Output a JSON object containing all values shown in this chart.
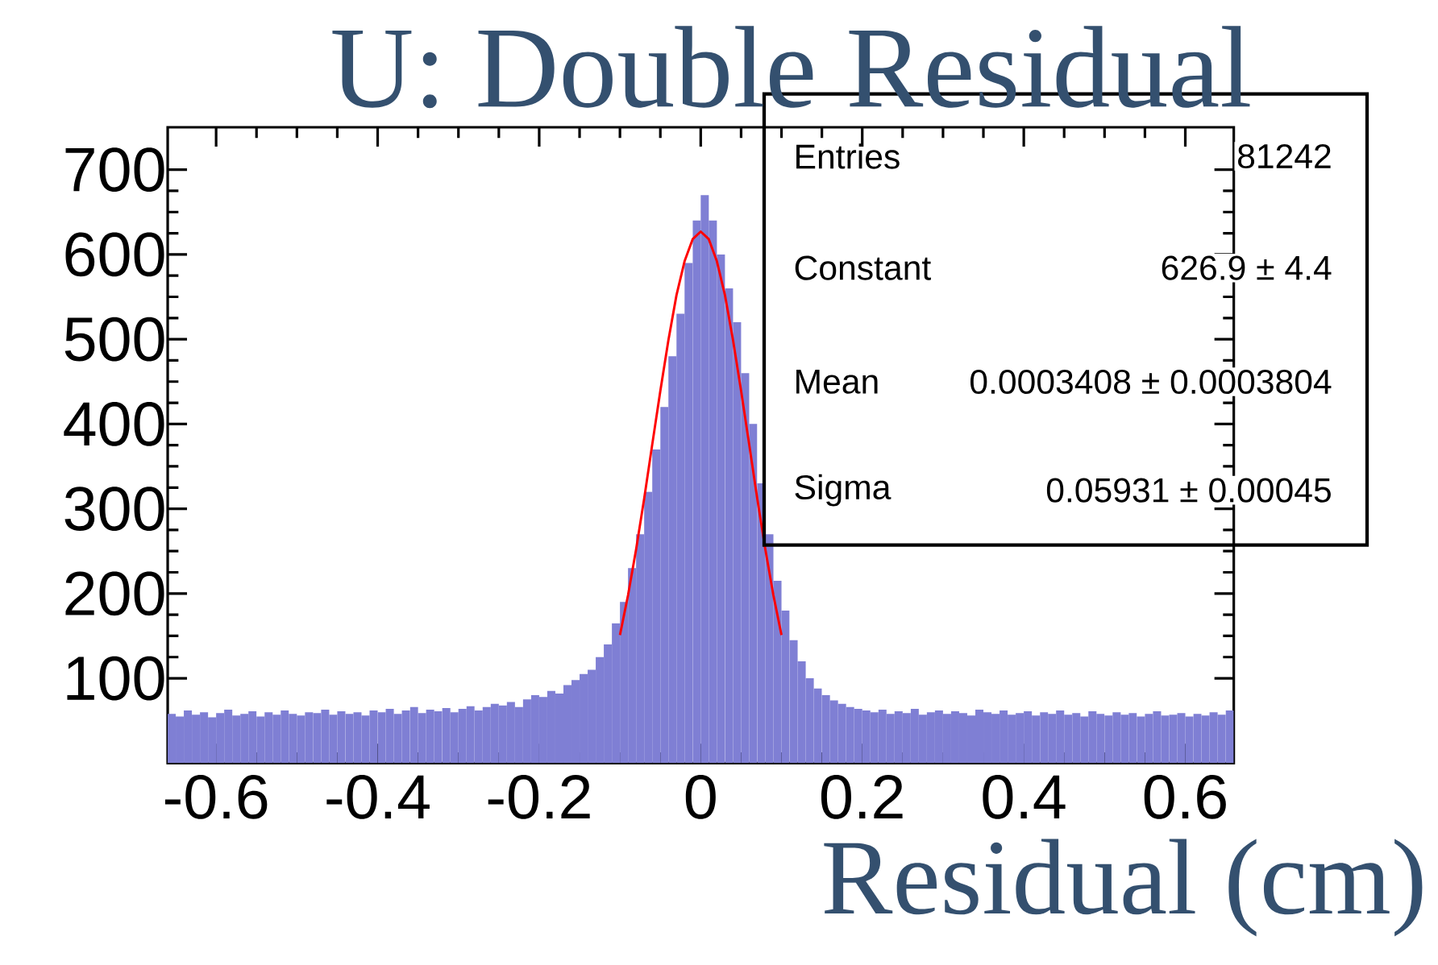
{
  "chart_data": {
    "type": "histogram",
    "title": "U: Double Residual",
    "xlabel": "Residual (cm)",
    "xlim": [
      -0.66,
      0.66
    ],
    "ylim": [
      0,
      750
    ],
    "xticks": [
      -0.6,
      -0.4,
      -0.2,
      0,
      0.2,
      0.4,
      0.6
    ],
    "yticks": [
      100,
      200,
      300,
      400,
      500,
      600,
      700
    ],
    "grid": false,
    "series": [
      {
        "color": "#7f7fd4",
        "bins": [
          -0.66,
          -0.65,
          -0.64,
          -0.63,
          -0.62,
          -0.61,
          -0.6,
          -0.59,
          -0.58,
          -0.57,
          -0.56,
          -0.55,
          -0.54,
          -0.53,
          -0.52,
          -0.51,
          -0.5,
          -0.49,
          -0.48,
          -0.47,
          -0.46,
          -0.45,
          -0.44,
          -0.43,
          -0.42,
          -0.41,
          -0.4,
          -0.39,
          -0.38,
          -0.37,
          -0.36,
          -0.35,
          -0.34,
          -0.33,
          -0.32,
          -0.31,
          -0.3,
          -0.29,
          -0.28,
          -0.27,
          -0.26,
          -0.25,
          -0.24,
          -0.23,
          -0.22,
          -0.21,
          -0.2,
          -0.19,
          -0.18,
          -0.17,
          -0.16,
          -0.15,
          -0.14,
          -0.13,
          -0.12,
          -0.11,
          -0.1,
          -0.09,
          -0.08,
          -0.07,
          -0.06,
          -0.05,
          -0.04,
          -0.03,
          -0.02,
          -0.01,
          0,
          0.01,
          0.02,
          0.03,
          0.04,
          0.05,
          0.06,
          0.07,
          0.08,
          0.09,
          0.1,
          0.11,
          0.12,
          0.13,
          0.14,
          0.15,
          0.16,
          0.17,
          0.18,
          0.19,
          0.2,
          0.21,
          0.22,
          0.23,
          0.24,
          0.25,
          0.26,
          0.27,
          0.28,
          0.29,
          0.3,
          0.31,
          0.32,
          0.33,
          0.34,
          0.35,
          0.36,
          0.37,
          0.38,
          0.39,
          0.4,
          0.41,
          0.42,
          0.43,
          0.44,
          0.45,
          0.46,
          0.47,
          0.48,
          0.49,
          0.5,
          0.51,
          0.52,
          0.53,
          0.54,
          0.55,
          0.56,
          0.57,
          0.58,
          0.59,
          0.6,
          0.61,
          0.62,
          0.63,
          0.64,
          0.65,
          0.66
        ],
        "values": [
          58,
          55,
          62,
          57,
          60,
          54,
          59,
          63,
          56,
          58,
          61,
          55,
          60,
          57,
          62,
          58,
          56,
          60,
          59,
          63,
          57,
          61,
          58,
          60,
          56,
          62,
          60,
          64,
          58,
          62,
          66,
          59,
          63,
          61,
          65,
          60,
          64,
          67,
          62,
          66,
          70,
          68,
          72,
          66,
          75,
          80,
          78,
          85,
          82,
          92,
          98,
          105,
          110,
          125,
          140,
          165,
          190,
          230,
          270,
          320,
          370,
          420,
          480,
          530,
          590,
          640,
          670,
          640,
          600,
          560,
          520,
          460,
          400,
          330,
          270,
          215,
          180,
          145,
          120,
          100,
          88,
          80,
          74,
          70,
          66,
          64,
          62,
          60,
          63,
          58,
          61,
          59,
          64,
          57,
          60,
          62,
          58,
          61,
          59,
          56,
          63,
          60,
          58,
          62,
          57,
          59,
          61,
          56,
          60,
          58,
          62,
          57,
          59,
          55,
          61,
          58,
          56,
          60,
          57,
          59,
          55,
          58,
          61,
          56,
          57,
          59,
          55,
          58,
          56,
          60,
          57,
          62
        ]
      },
      {
        "type": "line",
        "color": "#ff0000",
        "x": [
          -0.1,
          -0.09,
          -0.08,
          -0.07,
          -0.06,
          -0.05,
          -0.04,
          -0.03,
          -0.02,
          -0.01,
          0,
          0.01,
          0.02,
          0.03,
          0.04,
          0.05,
          0.06,
          0.07,
          0.08,
          0.09,
          0.1
        ],
        "values": [
          151,
          198,
          252,
          312,
          376,
          439,
          499,
          552,
          592,
          618,
          627,
          618,
          592,
          552,
          499,
          439,
          376,
          312,
          252,
          198,
          151
        ]
      }
    ],
    "annotations": [
      "Entries",
      "81242",
      "Constant",
      "626.9 ± 4.4",
      "Mean",
      "0.0003408 ± 0.0003804",
      "Sigma",
      "0.05931 ± 0.00045"
    ]
  }
}
